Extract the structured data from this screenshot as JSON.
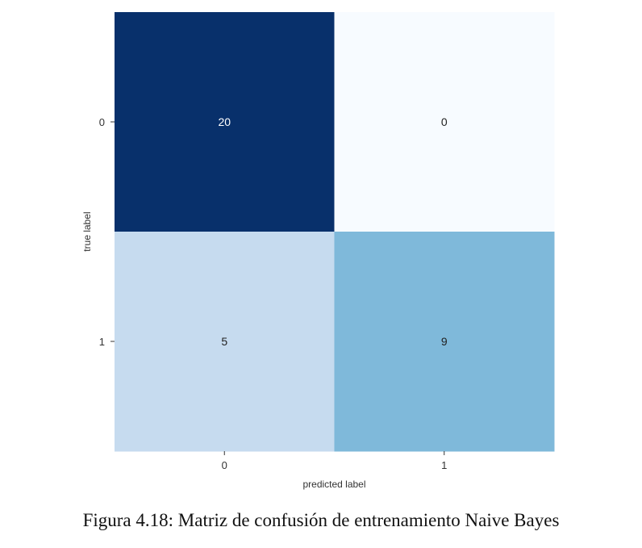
{
  "caption": "Figura 4.18: Matriz de confusión de entrenamiento Naive Bayes",
  "chart_data": {
    "type": "heatmap",
    "title": "",
    "xlabel": "predicted label",
    "ylabel": "true label",
    "x_categories": [
      "0",
      "1"
    ],
    "y_categories": [
      "0",
      "1"
    ],
    "values": [
      [
        20,
        0
      ],
      [
        5,
        9
      ]
    ],
    "cell_labels": [
      [
        "20",
        "0"
      ],
      [
        "5",
        "9"
      ]
    ],
    "colormap": "Blues",
    "colors": {
      "max": "#08306b",
      "min": "#f7fbff",
      "dark_text": "#ffffff",
      "light_text": "#222222"
    },
    "grid": false,
    "legend": "none"
  }
}
